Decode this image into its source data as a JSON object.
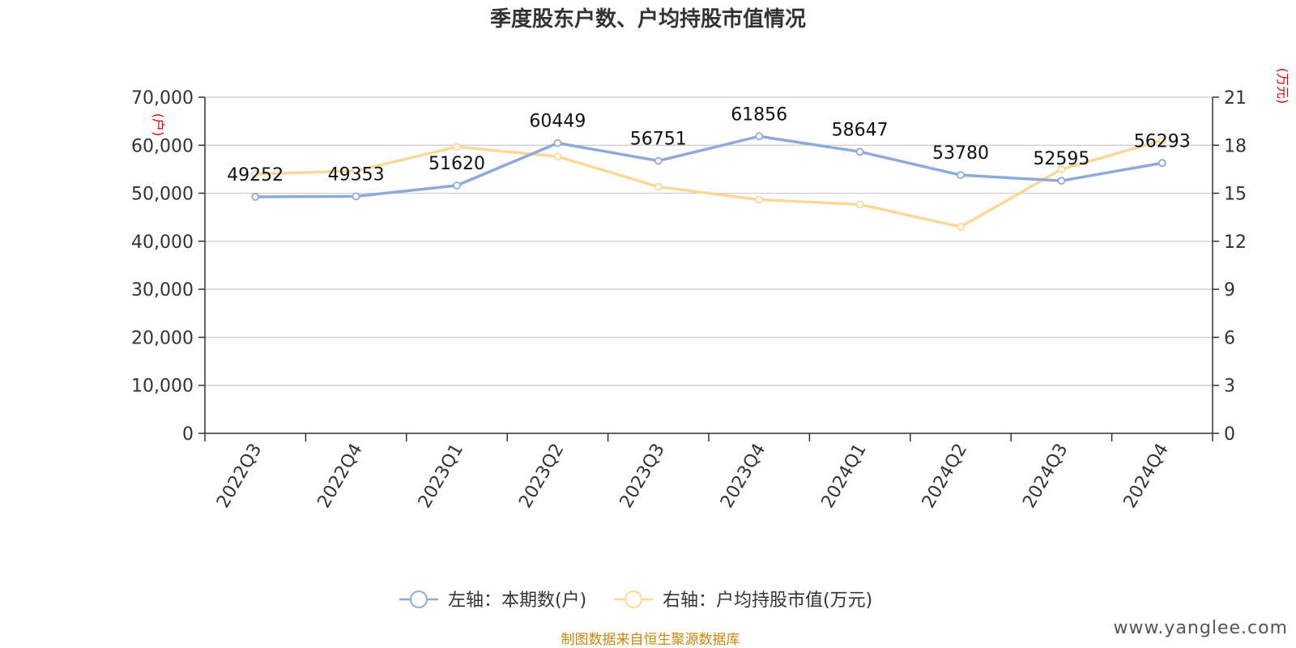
{
  "chart_data": {
    "type": "line",
    "title": "季度股东户数、户均持股市值情况",
    "categories": [
      "2022Q3",
      "2022Q4",
      "2023Q1",
      "2023Q2",
      "2023Q3",
      "2023Q4",
      "2024Q1",
      "2024Q2",
      "2024Q3",
      "2024Q4"
    ],
    "y_left": {
      "unit": "(户)",
      "range": [
        0,
        70000
      ],
      "ticks": [
        "0",
        "10,000",
        "20,000",
        "30,000",
        "40,000",
        "50,000",
        "60,000",
        "70,000"
      ]
    },
    "y_right": {
      "unit": "(万元)",
      "range": [
        0,
        21
      ],
      "ticks": [
        "0",
        "3",
        "6",
        "9",
        "12",
        "15",
        "18",
        "21"
      ]
    },
    "grid": true,
    "legend_position": "bottom-center",
    "series": [
      {
        "name": "左轴：本期数(户)",
        "axis": "left",
        "color": "#8eaad9",
        "values": [
          49252,
          49353,
          51620,
          60449,
          56751,
          61856,
          58647,
          53780,
          52595,
          56293
        ],
        "labels": [
          "49252",
          "49353",
          "51620",
          "60449",
          "56751",
          "61856",
          "58647",
          "53780",
          "52595",
          "56293"
        ]
      },
      {
        "name": "右轴：户均持股市值(万元)",
        "axis": "right",
        "color": "#fad898",
        "values": [
          16.2,
          16.4,
          17.9,
          17.3,
          15.4,
          14.6,
          14.3,
          12.9,
          16.5,
          18.3
        ]
      }
    ]
  },
  "footer": {
    "source": "制图数据来自恒生聚源数据库",
    "watermark": "www.yanglee.com"
  }
}
